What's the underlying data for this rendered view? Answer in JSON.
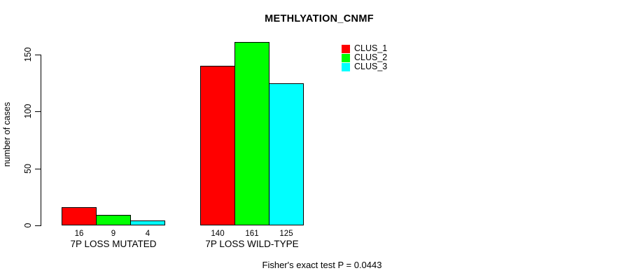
{
  "chart_data": {
    "type": "bar",
    "title": "METHLYATION_CNMF",
    "ylabel": "number of cases",
    "xlabel": "",
    "categories": [
      "7P LOSS MUTATED",
      "7P LOSS WILD-TYPE"
    ],
    "series": [
      {
        "name": "CLUS_1",
        "color": "#ff0000",
        "values": [
          16,
          140
        ]
      },
      {
        "name": "CLUS_2",
        "color": "#00ff00",
        "values": [
          9,
          161
        ]
      },
      {
        "name": "CLUS_3",
        "color": "#00ffff",
        "values": [
          4,
          125
        ]
      }
    ],
    "yticks": [
      0,
      50,
      100,
      150
    ],
    "ylim": [
      0,
      165
    ],
    "grid": false,
    "bar_borders": true,
    "legend": {
      "position": "top-right-inside",
      "entries": [
        {
          "label": "CLUS_1",
          "color": "#ff0000"
        },
        {
          "label": "CLUS_2",
          "color": "#00ff00"
        },
        {
          "label": "CLUS_3",
          "color": "#00ffff"
        }
      ]
    },
    "bar_value_labels": [
      [
        16,
        9,
        4
      ],
      [
        140,
        161,
        125
      ]
    ],
    "caption": "Fisher's exact test P = 0.0443"
  },
  "colors": {
    "background": "#ffffff",
    "axis": "#000000",
    "text": "#000000",
    "bar_border": "#000000"
  }
}
